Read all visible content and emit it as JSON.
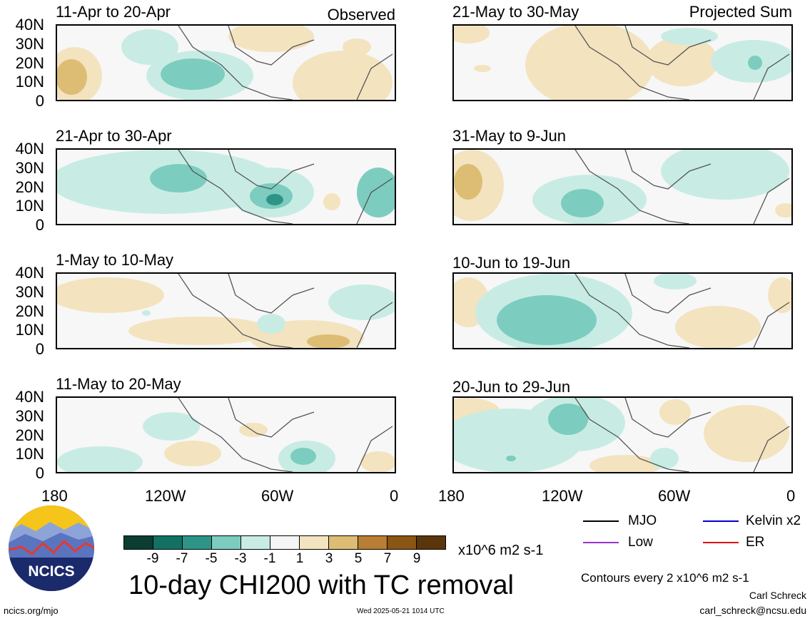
{
  "panels": {
    "left": [
      {
        "title": "11-Apr to 20-Apr",
        "tag": "Observed"
      },
      {
        "title": "21-Apr to 30-Apr",
        "tag": ""
      },
      {
        "title": "1-May to 10-May",
        "tag": ""
      },
      {
        "title": "11-May to 20-May",
        "tag": ""
      }
    ],
    "right": [
      {
        "title": "21-May to 30-May",
        "tag": "Projected Sum"
      },
      {
        "title": "31-May to 9-Jun",
        "tag": ""
      },
      {
        "title": "10-Jun to 19-Jun",
        "tag": ""
      },
      {
        "title": "20-Jun to 29-Jun",
        "tag": ""
      }
    ]
  },
  "axes": {
    "y_ticks": [
      "40N",
      "30N",
      "20N",
      "10N",
      "0"
    ],
    "x_ticks": [
      "180",
      "120W",
      "60W",
      "0"
    ]
  },
  "colorbar": {
    "labels": [
      "-9",
      "-7",
      "-5",
      "-3",
      "-1",
      "1",
      "3",
      "5",
      "7",
      "9"
    ],
    "colors": [
      "#0b3d33",
      "#137163",
      "#2e9488",
      "#7ccdbf",
      "#c8ece4",
      "#f5f5f5",
      "#f3e3bf",
      "#ddbd74",
      "#b97d33",
      "#8b5514",
      "#5a360a"
    ],
    "units": "x10^6 m2 s-1"
  },
  "legend": [
    {
      "label": "MJO",
      "color": "#000000"
    },
    {
      "label": "Kelvin x2",
      "color": "#0000cc"
    },
    {
      "label": "Low",
      "color": "#9933cc"
    },
    {
      "label": "ER",
      "color": "#dd1111"
    }
  ],
  "title": "10-day CHI200 with TC removal",
  "contour_note": "Contours every 2 x10^6 m2 s-1",
  "author": "Carl Schreck",
  "email": "carl_schreck@ncsu.edu",
  "logo_text": "NCICS",
  "site": "ncics.org/mjo",
  "timestamp": "Wed 2025-05-21 1014 UTC"
}
